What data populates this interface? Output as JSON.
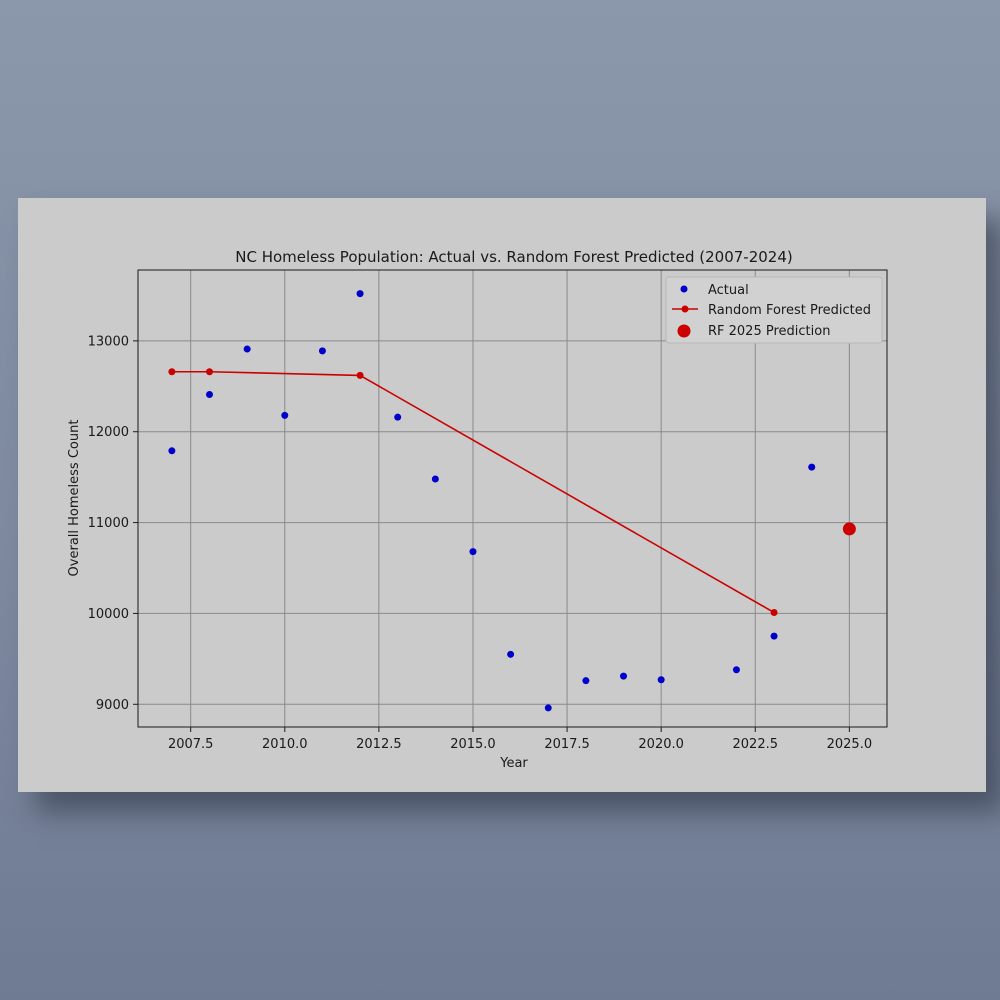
{
  "chart_data": {
    "type": "scatter",
    "title": "NC Homeless Population: Actual vs. Random Forest Predicted (2007-2024)",
    "xlabel": "Year",
    "ylabel": "Overall Homeless Count",
    "xlim": [
      2006.1,
      2026.0
    ],
    "ylim": [
      8750,
      13780
    ],
    "x_ticks": [
      2007.5,
      2010.0,
      2012.5,
      2015.0,
      2017.5,
      2020.0,
      2022.5,
      2025.0
    ],
    "x_tick_labels": [
      "2007.5",
      "2010.0",
      "2012.5",
      "2015.0",
      "2017.5",
      "2020.0",
      "2022.5",
      "2025.0"
    ],
    "y_ticks": [
      9000,
      10000,
      11000,
      12000,
      13000
    ],
    "y_tick_labels": [
      "9000",
      "10000",
      "11000",
      "12000",
      "13000"
    ],
    "grid": true,
    "legend_position": "top-right",
    "series": [
      {
        "name": "Actual",
        "kind": "scatter",
        "color": "#0000cc",
        "points": [
          {
            "x": 2007,
            "y": 11790
          },
          {
            "x": 2008,
            "y": 12410
          },
          {
            "x": 2009,
            "y": 12910
          },
          {
            "x": 2010,
            "y": 12180
          },
          {
            "x": 2011,
            "y": 12890
          },
          {
            "x": 2012,
            "y": 13520
          },
          {
            "x": 2013,
            "y": 12160
          },
          {
            "x": 2014,
            "y": 11480
          },
          {
            "x": 2015,
            "y": 10680
          },
          {
            "x": 2016,
            "y": 9550
          },
          {
            "x": 2017,
            "y": 8960
          },
          {
            "x": 2018,
            "y": 9260
          },
          {
            "x": 2019,
            "y": 9310
          },
          {
            "x": 2020,
            "y": 9270
          },
          {
            "x": 2022,
            "y": 9380
          },
          {
            "x": 2023,
            "y": 9750
          },
          {
            "x": 2024,
            "y": 11610
          }
        ]
      },
      {
        "name": "Random Forest Predicted",
        "kind": "line",
        "color": "#cc0000",
        "points": [
          {
            "x": 2007,
            "y": 12660
          },
          {
            "x": 2008,
            "y": 12660
          },
          {
            "x": 2012,
            "y": 12620
          },
          {
            "x": 2023,
            "y": 10010
          }
        ]
      },
      {
        "name": "RF 2025 Prediction",
        "kind": "scatter-large",
        "color": "#cc0000",
        "points": [
          {
            "x": 2025,
            "y": 10930
          }
        ]
      }
    ]
  }
}
